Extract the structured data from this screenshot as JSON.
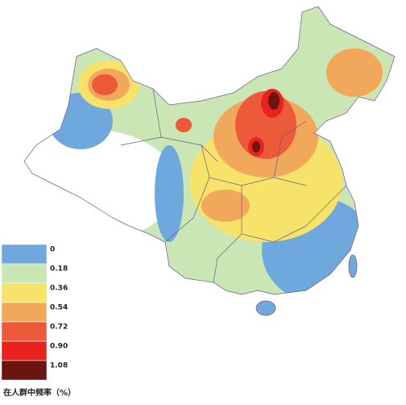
{
  "legend": {
    "title": "在人群中频率（%）",
    "items": [
      {
        "label": "0",
        "color": "#6fa8dc"
      },
      {
        "label": "0.18",
        "color": "#c9e6b4"
      },
      {
        "label": "0.36",
        "color": "#f7e36a"
      },
      {
        "label": "0.54",
        "color": "#f2a85a"
      },
      {
        "label": "0.72",
        "color": "#ec5a3a"
      },
      {
        "label": "0.90",
        "color": "#e8231f"
      },
      {
        "label": "1.08",
        "color": "#6b1410"
      }
    ]
  }
}
